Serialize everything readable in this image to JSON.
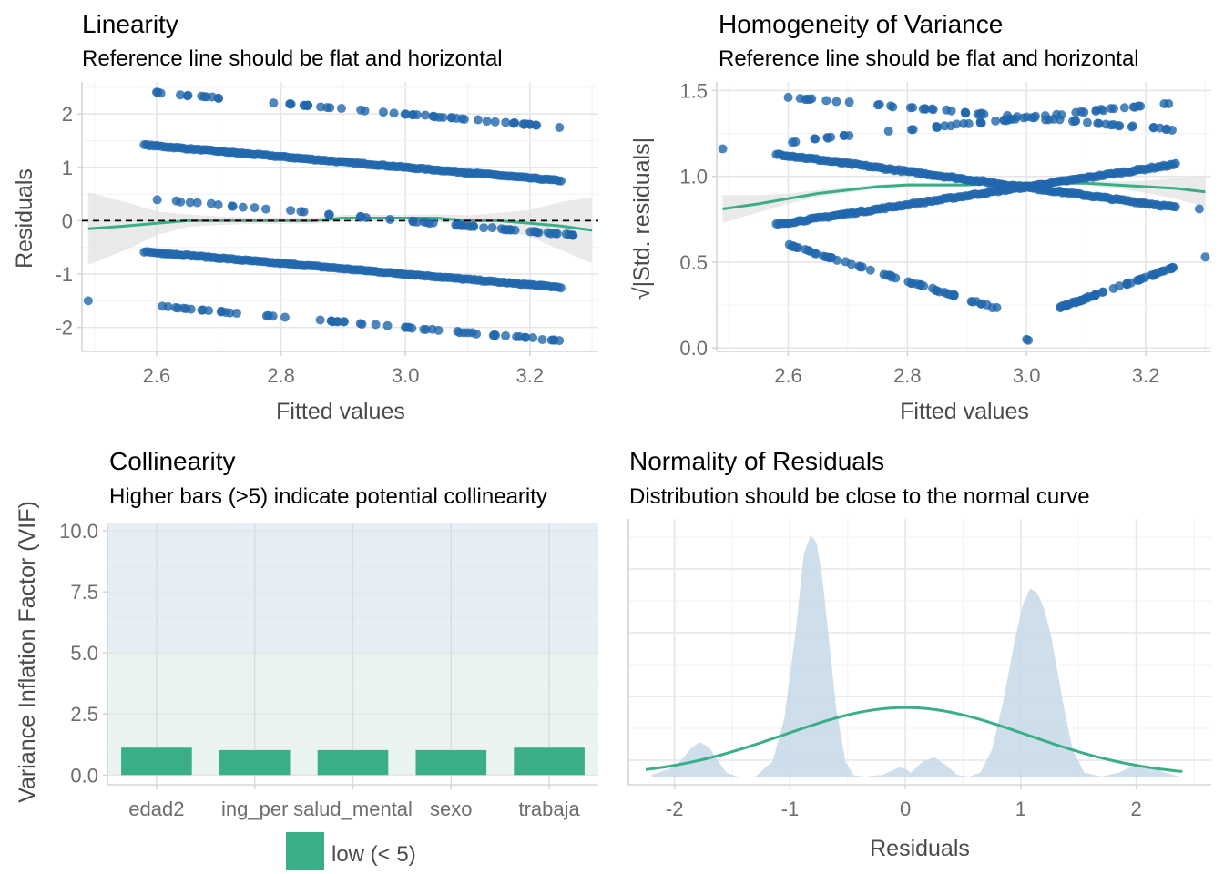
{
  "chart_data": [
    {
      "type": "scatter",
      "title": "Linearity",
      "subtitle": "Reference line should be flat and horizontal",
      "xlabel": "Fitted values",
      "ylabel": "Residuals",
      "xlim": [
        2.48,
        3.31
      ],
      "ylim": [
        -2.45,
        2.6
      ],
      "xticks": [
        2.6,
        2.8,
        3.0,
        3.2
      ],
      "xtick_labels": [
        "2.6",
        "2.8",
        "3.0",
        "3.2"
      ],
      "yticks": [
        -2,
        -1,
        0,
        1,
        2
      ],
      "ytick_labels": [
        "-2",
        "-1",
        "0",
        "1",
        "2"
      ],
      "reference_line": 0,
      "point_color": "#2166ac",
      "smooth_color": "#3aaf85",
      "bands": [
        {
          "intercept": 2.4,
          "x": [
            2.6,
            3.25
          ],
          "dense": false
        },
        {
          "intercept": 1.4,
          "x": [
            2.58,
            3.25
          ],
          "dense": true
        },
        {
          "intercept": 0.4,
          "x": [
            2.6,
            3.3
          ],
          "dense": false
        },
        {
          "intercept": -0.6,
          "x": [
            2.58,
            3.25
          ],
          "dense": true
        },
        {
          "intercept": -1.6,
          "x": [
            2.6,
            3.25
          ],
          "dense": false
        }
      ],
      "extra_points": [
        {
          "x": 2.49,
          "y": -1.5
        }
      ],
      "smooth": {
        "x": [
          2.49,
          2.55,
          2.6,
          2.65,
          2.7,
          2.75,
          2.8,
          2.85,
          2.9,
          2.95,
          3.0,
          3.05,
          3.1,
          3.15,
          3.2,
          3.25,
          3.3
        ],
        "y": [
          -0.15,
          -0.1,
          -0.05,
          0.0,
          0.0,
          0.0,
          0.0,
          0.0,
          0.05,
          0.05,
          0.05,
          0.05,
          0.0,
          0.0,
          -0.05,
          -0.1,
          -0.18
        ],
        "se": [
          0.68,
          0.45,
          0.22,
          0.12,
          0.08,
          0.06,
          0.06,
          0.06,
          0.06,
          0.06,
          0.06,
          0.07,
          0.1,
          0.15,
          0.25,
          0.45,
          0.62
        ]
      }
    },
    {
      "type": "scatter",
      "title": "Homogeneity of Variance",
      "subtitle": "Reference line should be flat and horizontal",
      "xlabel": "Fitted values",
      "ylabel": "√|Std. residuals|",
      "xlim": [
        2.48,
        3.31
      ],
      "ylim": [
        -0.02,
        1.55
      ],
      "xticks": [
        2.6,
        2.8,
        3.0,
        3.2
      ],
      "xtick_labels": [
        "2.6",
        "2.8",
        "3.0",
        "3.2"
      ],
      "yticks": [
        0.0,
        0.5,
        1.0,
        1.5
      ],
      "ytick_labels": [
        "0.0",
        "0.5",
        "1.0",
        "1.5"
      ],
      "point_color": "#2166ac",
      "smooth_color": "#3aaf85",
      "lines": [
        {
          "x": [
            2.58,
            3.25
          ],
          "y": [
            1.13,
            0.82
          ],
          "dense": true
        },
        {
          "x": [
            2.58,
            3.25
          ],
          "y": [
            0.72,
            1.07
          ],
          "dense": true
        },
        {
          "x": [
            2.6,
            3.25
          ],
          "y": [
            1.46,
            1.27
          ],
          "dense": false
        },
        {
          "x": [
            2.6,
            3.25
          ],
          "y": [
            1.2,
            1.43
          ],
          "dense": false
        },
        {
          "x": [
            2.6,
            2.95
          ],
          "y": [
            0.6,
            0.23
          ],
          "dense": false
        },
        {
          "x": [
            3.05,
            3.25
          ],
          "y": [
            0.23,
            0.47
          ],
          "dense": false
        }
      ],
      "extra_points": [
        {
          "x": 2.49,
          "y": 1.16
        },
        {
          "x": 3.0,
          "y": 0.05
        },
        {
          "x": 3.003,
          "y": 0.045
        },
        {
          "x": 3.3,
          "y": 0.53
        },
        {
          "x": 3.29,
          "y": 0.81
        }
      ],
      "smooth": {
        "x": [
          2.49,
          2.55,
          2.6,
          2.65,
          2.7,
          2.75,
          2.8,
          2.85,
          2.9,
          2.95,
          3.0,
          3.05,
          3.1,
          3.15,
          3.2,
          3.25,
          3.3
        ],
        "y": [
          0.81,
          0.84,
          0.87,
          0.9,
          0.92,
          0.94,
          0.95,
          0.95,
          0.95,
          0.96,
          0.96,
          0.96,
          0.96,
          0.95,
          0.94,
          0.93,
          0.91
        ],
        "se": [
          0.08,
          0.05,
          0.03,
          0.02,
          0.015,
          0.012,
          0.01,
          0.01,
          0.01,
          0.01,
          0.01,
          0.01,
          0.012,
          0.02,
          0.035,
          0.06,
          0.09
        ]
      }
    },
    {
      "type": "bar",
      "title": "Collinearity",
      "subtitle": "Higher bars (>5) indicate potential collinearity",
      "xlabel": "",
      "ylabel": "Variance Inflation Factor (VIF)",
      "categories": [
        "edad2",
        "ing_per",
        "salud_mental",
        "sexo",
        "trabaja"
      ],
      "values": [
        1.12,
        1.02,
        1.02,
        1.02,
        1.12
      ],
      "ylim": [
        -0.4,
        10.3
      ],
      "yticks": [
        0.0,
        2.5,
        5.0,
        7.5,
        10.0
      ],
      "ytick_labels": [
        "0.0",
        "2.5",
        "5.0",
        "7.5",
        "10.0"
      ],
      "bar_color": "#3aaf85",
      "zones": [
        {
          "from": 0,
          "to": 5,
          "color": "#e9f4f0"
        },
        {
          "from": 5,
          "to": 10.3,
          "color": "#e6eef5"
        }
      ],
      "legend": {
        "label": "low (< 5)",
        "color": "#3aaf85",
        "position": "bottom"
      }
    },
    {
      "type": "area",
      "title": "Normality of Residuals",
      "subtitle": "Distribution should be close to the normal curve",
      "xlabel": "Residuals",
      "ylabel": "",
      "xlim": [
        -2.4,
        2.65
      ],
      "xticks": [
        -2,
        -1,
        0,
        1,
        2
      ],
      "xtick_labels": [
        "-2",
        "-1",
        "0",
        "1",
        "2"
      ],
      "density_color": "#c6d8e8",
      "normal_color": "#3aaf85",
      "density": {
        "x": [
          -2.2,
          -2.05,
          -1.95,
          -1.85,
          -1.78,
          -1.7,
          -1.62,
          -1.55,
          -1.45,
          -1.3,
          -1.15,
          -1.05,
          -0.95,
          -0.88,
          -0.82,
          -0.77,
          -0.72,
          -0.67,
          -0.6,
          -0.52,
          -0.45,
          -0.35,
          -0.2,
          -0.05,
          0.0,
          0.05,
          0.15,
          0.25,
          0.35,
          0.45,
          0.55,
          0.65,
          0.75,
          0.85,
          0.95,
          1.02,
          1.08,
          1.14,
          1.2,
          1.26,
          1.32,
          1.38,
          1.45,
          1.55,
          1.7,
          1.85,
          1.95,
          2.05,
          2.15,
          2.25,
          2.38
        ],
        "y": [
          0.02,
          0.1,
          0.2,
          0.38,
          0.45,
          0.38,
          0.2,
          0.05,
          0.0,
          0.0,
          0.2,
          0.75,
          1.9,
          2.9,
          3.15,
          3.05,
          2.6,
          1.9,
          0.9,
          0.2,
          0.02,
          0.0,
          0.02,
          0.12,
          0.1,
          0.05,
          0.2,
          0.25,
          0.15,
          0.02,
          0.0,
          0.05,
          0.35,
          1.0,
          1.8,
          2.25,
          2.45,
          2.4,
          2.2,
          1.85,
          1.35,
          0.85,
          0.35,
          0.05,
          0.0,
          0.05,
          0.12,
          0.15,
          0.12,
          0.05,
          0.0
        ]
      },
      "normal": {
        "mean": 0.0,
        "sd": 1.05,
        "xrange": [
          -2.25,
          2.4
        ],
        "peak": 0.9
      },
      "ymax": 3.3
    }
  ]
}
